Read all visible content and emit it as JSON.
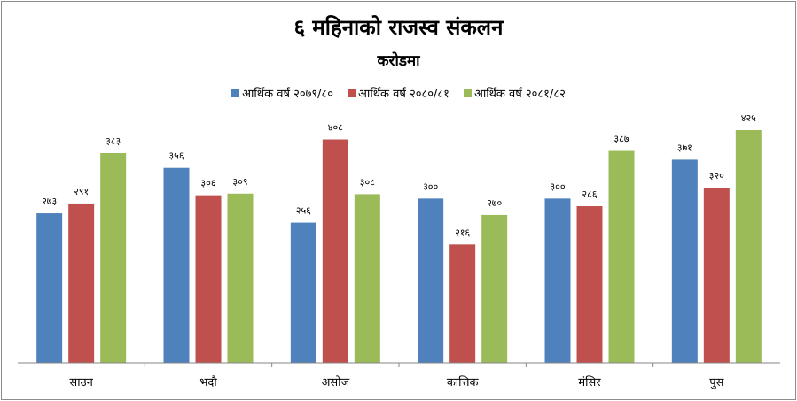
{
  "chart_data": {
    "type": "bar",
    "title": "६ महिनाको राजस्व संकलन",
    "subtitle": "करोडमा",
    "categories": [
      "साउन",
      "भदौ",
      "असोज",
      "कात्तिक",
      "मंसिर",
      "पुस"
    ],
    "series": [
      {
        "name": "आर्थिक वर्ष २०७९/८०",
        "color": "#4f81bd",
        "values": [
          273,
          356,
          256,
          300,
          300,
          371
        ],
        "labels": [
          "२७३",
          "३५६",
          "२५६",
          "३००",
          "३००",
          "३७१"
        ]
      },
      {
        "name": "आर्थिक वर्ष २०८०/८१",
        "color": "#c0504d",
        "values": [
          291,
          306,
          408,
          216,
          286,
          320
        ],
        "labels": [
          "२९१",
          "३०६",
          "४०८",
          "२१६",
          "२८६",
          "३२०"
        ]
      },
      {
        "name": "आर्थिक वर्ष २०८१/८२",
        "color": "#9bbb59",
        "values": [
          383,
          309,
          308,
          270,
          387,
          425
        ],
        "labels": [
          "३८३",
          "३०९",
          "३०८",
          "२७०",
          "३८७",
          "४२५"
        ]
      }
    ],
    "ylim": [
      0,
      450
    ],
    "grid": false,
    "legend_position": "top"
  }
}
